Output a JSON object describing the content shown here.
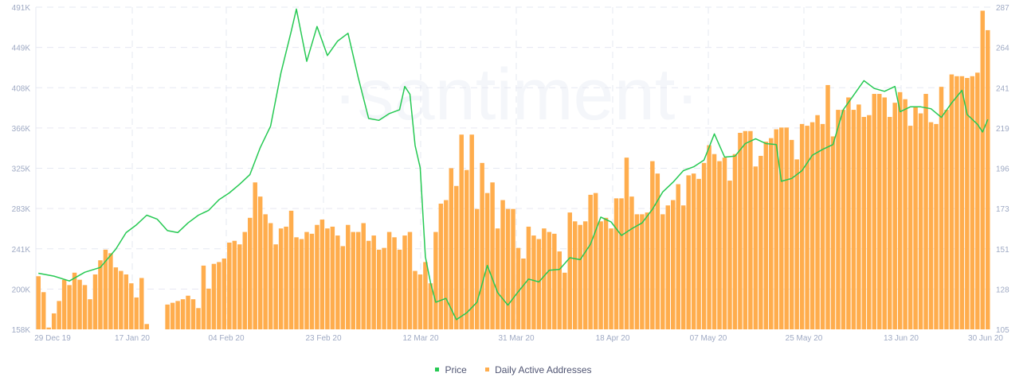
{
  "chart_data": {
    "type": "bar+line",
    "title": "",
    "watermark": "·santiment·",
    "xlabel": "",
    "ylabel_left": "Price",
    "ylabel_right": "Daily Active Addresses",
    "x_ticks": [
      "29 Dec 19",
      "17 Jan 20",
      "04 Feb 20",
      "23 Feb 20",
      "12 Mar 20",
      "31 Mar 20",
      "18 Apr 20",
      "07 May 20",
      "25 May 20",
      "13 Jun 20",
      "30 Jun 20"
    ],
    "y_left_ticks": [
      "491K",
      "449K",
      "408K",
      "366K",
      "325K",
      "283K",
      "241K",
      "200K",
      "158K"
    ],
    "y_right_ticks": [
      "287",
      "264",
      "241",
      "219",
      "196",
      "173",
      "151",
      "128",
      "105"
    ],
    "y_left_range": [
      158000,
      491000
    ],
    "y_right_range": [
      105,
      287
    ],
    "grid": true,
    "legend_position": "bottom-center",
    "legend": [
      {
        "name": "Price",
        "color": "#26c953"
      },
      {
        "name": "Daily Active Addresses",
        "color": "#ffad4d"
      }
    ],
    "series": [
      {
        "name": "Daily Active Addresses",
        "type": "bar",
        "axis": "right",
        "color": "#ffad4d",
        "start_date": "29 Dec 19",
        "values": [
          135,
          126,
          106,
          114,
          121,
          133,
          130,
          137,
          133,
          130,
          122,
          136,
          144,
          150,
          148,
          140,
          138,
          136,
          131,
          123,
          134,
          108,
          105,
          104,
          104,
          119,
          120,
          121,
          122,
          124,
          122,
          117,
          141,
          128,
          142,
          143,
          145,
          154,
          155,
          153,
          160,
          168,
          188,
          180,
          170,
          165,
          153,
          162,
          163,
          172,
          157,
          156,
          160,
          159,
          164,
          167,
          162,
          163,
          158,
          152,
          164,
          160,
          160,
          165,
          155,
          158,
          150,
          151,
          160,
          157,
          150,
          158,
          160,
          138,
          136,
          143,
          131,
          160,
          176,
          178,
          196,
          186,
          215,
          195,
          215,
          173,
          199,
          182,
          188,
          162,
          178,
          173,
          173,
          151,
          145,
          163,
          158,
          156,
          162,
          160,
          159,
          149,
          137,
          171,
          166,
          164,
          166,
          181,
          182,
          166,
          168,
          162,
          179,
          179,
          202,
          180,
          170,
          170,
          171,
          200,
          193,
          170,
          175,
          178,
          187,
          175,
          192,
          193,
          190,
          199,
          209,
          204,
          200,
          202,
          189,
          204,
          216,
          217,
          217,
          197,
          203,
          211,
          213,
          218,
          219,
          219,
          212,
          201,
          221,
          220,
          222,
          226,
          221,
          243,
          214,
          229,
          229,
          236,
          229,
          232,
          225,
          226,
          238,
          238,
          236,
          225,
          233,
          239,
          235,
          220,
          231,
          227,
          238,
          222,
          221,
          242,
          229,
          249,
          248,
          248,
          247,
          248,
          250,
          285,
          274
        ]
      },
      {
        "name": "Price",
        "type": "line",
        "axis": "left",
        "color": "#26c953",
        "points": [
          [
            "29 Dec 19",
            216000
          ],
          [
            "01 Jan 20",
            213000
          ],
          [
            "04 Jan 20",
            208000
          ],
          [
            "07 Jan 20",
            217000
          ],
          [
            "10 Jan 20",
            222000
          ],
          [
            "13 Jan 20",
            241000
          ],
          [
            "15 Jan 20",
            258000
          ],
          [
            "17 Jan 20",
            266000
          ],
          [
            "19 Jan 20",
            276000
          ],
          [
            "21 Jan 20",
            272000
          ],
          [
            "23 Jan 20",
            260000
          ],
          [
            "25 Jan 20",
            258000
          ],
          [
            "27 Jan 20",
            268000
          ],
          [
            "29 Jan 20",
            276000
          ],
          [
            "31 Jan 20",
            281000
          ],
          [
            "02 Feb 20",
            292000
          ],
          [
            "04 Feb 20",
            299000
          ],
          [
            "06 Feb 20",
            308000
          ],
          [
            "08 Feb 20",
            318000
          ],
          [
            "10 Feb 20",
            346000
          ],
          [
            "12 Feb 20",
            368000
          ],
          [
            "14 Feb 20",
            423000
          ],
          [
            "16 Feb 20",
            466000
          ],
          [
            "17 Feb 20",
            489000
          ],
          [
            "19 Feb 20",
            435000
          ],
          [
            "21 Feb 20",
            471000
          ],
          [
            "23 Feb 20",
            441000
          ],
          [
            "25 Feb 20",
            456000
          ],
          [
            "27 Feb 20",
            464000
          ],
          [
            "29 Feb 20",
            418000
          ],
          [
            "02 Mar 20",
            376000
          ],
          [
            "04 Mar 20",
            374000
          ],
          [
            "06 Mar 20",
            381000
          ],
          [
            "08 Mar 20",
            385000
          ],
          [
            "09 Mar 20",
            409000
          ],
          [
            "10 Mar 20",
            401000
          ],
          [
            "11 Mar 20",
            348000
          ],
          [
            "12 Mar 20",
            325000
          ],
          [
            "13 Mar 20",
            233000
          ],
          [
            "14 Mar 20",
            206000
          ],
          [
            "15 Mar 20",
            186000
          ],
          [
            "17 Mar 20",
            190000
          ],
          [
            "19 Mar 20",
            168000
          ],
          [
            "21 Mar 20",
            175000
          ],
          [
            "23 Mar 20",
            186000
          ],
          [
            "25 Mar 20",
            224000
          ],
          [
            "27 Mar 20",
            196000
          ],
          [
            "29 Mar 20",
            183000
          ],
          [
            "31 Mar 20",
            197000
          ],
          [
            "02 Apr 20",
            210000
          ],
          [
            "04 Apr 20",
            207000
          ],
          [
            "06 Apr 20",
            219000
          ],
          [
            "08 Apr 20",
            220000
          ],
          [
            "10 Apr 20",
            232000
          ],
          [
            "12 Apr 20",
            230000
          ],
          [
            "14 Apr 20",
            246000
          ],
          [
            "16 Apr 20",
            274000
          ],
          [
            "18 Apr 20",
            269000
          ],
          [
            "20 Apr 20",
            255000
          ],
          [
            "22 Apr 20",
            262000
          ],
          [
            "24 Apr 20",
            268000
          ],
          [
            "26 Apr 20",
            282000
          ],
          [
            "28 Apr 20",
            300000
          ],
          [
            "30 Apr 20",
            310000
          ],
          [
            "02 May 20",
            322000
          ],
          [
            "04 May 20",
            326000
          ],
          [
            "06 May 20",
            333000
          ],
          [
            "08 May 20",
            360000
          ],
          [
            "10 May 20",
            336000
          ],
          [
            "12 May 20",
            337000
          ],
          [
            "14 May 20",
            350000
          ],
          [
            "16 May 20",
            355000
          ],
          [
            "18 May 20",
            350000
          ],
          [
            "20 May 20",
            349000
          ],
          [
            "21 May 20",
            311000
          ],
          [
            "23 May 20",
            314000
          ],
          [
            "25 May 20",
            322000
          ],
          [
            "27 May 20",
            338000
          ],
          [
            "29 May 20",
            344000
          ],
          [
            "31 May 20",
            349000
          ],
          [
            "02 Jun 20",
            385000
          ],
          [
            "04 Jun 20",
            400000
          ],
          [
            "06 Jun 20",
            415000
          ],
          [
            "08 Jun 20",
            407000
          ],
          [
            "10 Jun 20",
            404000
          ],
          [
            "12 Jun 20",
            409000
          ],
          [
            "13 Jun 20",
            383000
          ],
          [
            "15 Jun 20",
            388000
          ],
          [
            "17 Jun 20",
            388000
          ],
          [
            "19 Jun 20",
            386000
          ],
          [
            "21 Jun 20",
            377000
          ],
          [
            "23 Jun 20",
            392000
          ],
          [
            "25 Jun 20",
            405000
          ],
          [
            "26 Jun 20",
            380000
          ],
          [
            "28 Jun 20",
            370000
          ],
          [
            "29 Jun 20",
            362000
          ],
          [
            "30 Jun 20",
            375000
          ]
        ]
      }
    ]
  },
  "legend": {
    "price_label": "Price",
    "daa_label": "Daily Active Addresses"
  },
  "colors": {
    "price": "#26c953",
    "daa": "#ffad4d",
    "grid": "#e6e8f2",
    "axis_text": "#9faac4",
    "watermark": "#f4f6fa"
  }
}
